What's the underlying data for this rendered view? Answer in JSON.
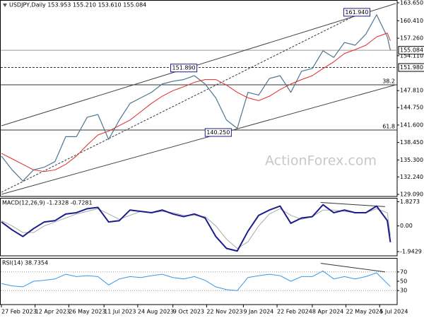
{
  "chart_data": [
    {
      "type": "line",
      "title": "USDJPY,Daily  153.953 155.210 153.610 155.084",
      "watermark": "ActionForex.com",
      "x": [
        "2023-02-27",
        "2023-03-13",
        "2023-03-27",
        "2023-04-10",
        "2023-04-24",
        "2023-05-08",
        "2023-05-22",
        "2023-06-05",
        "2023-06-19",
        "2023-07-03",
        "2023-07-17",
        "2023-07-31",
        "2023-08-14",
        "2023-08-28",
        "2023-09-11",
        "2023-09-25",
        "2023-10-09",
        "2023-10-23",
        "2023-11-06",
        "2023-11-20",
        "2023-12-04",
        "2023-12-18",
        "2024-01-01",
        "2024-01-15",
        "2024-01-29",
        "2024-02-12",
        "2024-02-26",
        "2024-03-11",
        "2024-03-25",
        "2024-04-08",
        "2024-04-22",
        "2024-05-06",
        "2024-05-20",
        "2024-06-03",
        "2024-06-17",
        "2024-07-01",
        "2024-07-15",
        "2024-07-19"
      ],
      "xlim": [
        "2023-02-27",
        "2024-07-26"
      ],
      "ylim": [
        128.71,
        164.16
      ],
      "yticks": [
        {
          "value": 163.65,
          "label": "163.650"
        },
        {
          "value": 160.41,
          "label": "160.410"
        },
        {
          "value": 157.26,
          "label": "157.260"
        },
        {
          "value": 154.11,
          "label": "154.110"
        },
        {
          "value": 147.81,
          "label": "147.810"
        },
        {
          "value": 144.75,
          "label": "144.750"
        },
        {
          "value": 141.6,
          "label": "141.600"
        },
        {
          "value": 138.45,
          "label": "138.450"
        },
        {
          "value": 135.3,
          "label": "135.300"
        },
        {
          "value": 132.24,
          "label": "132.240"
        },
        {
          "value": 129.09,
          "label": "129.090"
        }
      ],
      "series": [
        {
          "color": "#4d7590",
          "width": 1.2,
          "values": [
            136.0,
            133.5,
            131.5,
            133.5,
            134.0,
            135.0,
            139.5,
            139.5,
            143.0,
            143.5,
            139.0,
            142.5,
            145.5,
            146.5,
            147.5,
            149.0,
            149.5,
            149.8,
            150.5,
            149.0,
            146.5,
            142.5,
            141.0,
            147.5,
            147.0,
            150.0,
            150.5,
            147.5,
            151.3,
            151.8,
            155.0,
            153.8,
            156.5,
            156.0,
            158.0,
            161.5,
            157.5,
            155.084
          ]
        },
        {
          "color": "#e02a2a",
          "width": 1,
          "values": [
            136.5,
            135.5,
            134.5,
            133.5,
            133.2,
            133.5,
            134.5,
            136.0,
            138.0,
            139.8,
            140.5,
            141.5,
            142.5,
            144.0,
            145.5,
            146.8,
            147.8,
            148.5,
            149.3,
            149.8,
            149.8,
            148.8,
            147.5,
            146.5,
            146.0,
            146.8,
            148.0,
            149.0,
            149.8,
            150.5,
            151.8,
            153.0,
            154.5,
            155.2,
            156.0,
            157.5,
            158.2,
            156.8
          ]
        }
      ],
      "levels": [
        {
          "value": 155.084,
          "label": "155.084",
          "label_position": "axis",
          "style": "solid",
          "color": "#999999"
        },
        {
          "value": 151.98,
          "label": "151.980",
          "label_position": "axis",
          "style": "dashed",
          "color": "#333333"
        },
        {
          "value": 148.86,
          "label": "38.2",
          "label_position": "inside",
          "style": "solid",
          "color": "#333333"
        },
        {
          "value": 140.7,
          "label": "61.8",
          "label_position": "inside",
          "style": "solid",
          "color": "#333333"
        }
      ],
      "trendlines": [
        {
          "x": [
            "2023-02-27",
            "2024-07-26"
          ],
          "values": [
            141.46,
            163.52
          ],
          "style": "solid",
          "color": "#444444"
        },
        {
          "x": [
            "2023-02-27",
            "2024-07-26"
          ],
          "values": [
            129.09,
            148.86
          ],
          "style": "solid",
          "color": "#444444"
        },
        {
          "x": [
            "2023-02-27",
            "2024-06-14"
          ],
          "values": [
            129.47,
            162.12
          ],
          "style": "dashed",
          "color": "#333333"
        }
      ],
      "annotations": [
        {
          "x": "2024-06-26",
          "value": 161.94,
          "label": "161.940"
        },
        {
          "x": "2023-11-13",
          "value": 151.89,
          "label": "151.890"
        },
        {
          "x": "2023-12-28",
          "value": 140.25,
          "label": "140.250"
        }
      ]
    },
    {
      "type": "line",
      "title": "MACD(12,26,9) -1.2328 -0.7281",
      "x": [
        "2023-02-27",
        "2023-03-13",
        "2023-03-27",
        "2023-04-10",
        "2023-04-24",
        "2023-05-08",
        "2023-05-22",
        "2023-06-05",
        "2023-06-19",
        "2023-07-03",
        "2023-07-17",
        "2023-07-31",
        "2023-08-14",
        "2023-08-28",
        "2023-09-11",
        "2023-09-25",
        "2023-10-09",
        "2023-10-23",
        "2023-11-06",
        "2023-11-20",
        "2023-12-04",
        "2023-12-18",
        "2024-01-01",
        "2024-01-15",
        "2024-01-29",
        "2024-02-12",
        "2024-02-26",
        "2024-03-11",
        "2024-03-25",
        "2024-04-08",
        "2024-04-22",
        "2024-05-06",
        "2024-05-20",
        "2024-06-03",
        "2024-06-17",
        "2024-07-01",
        "2024-07-15",
        "2024-07-19"
      ],
      "xlim": [
        "2023-02-27",
        "2024-07-26"
      ],
      "ylim": [
        -2.26,
        2.12
      ],
      "yticks": [
        1.8273,
        {
          "value": 0,
          "label": "0.00"
        },
        -1.9429
      ],
      "series": [
        {
          "color": "#aaaaaa",
          "width": 1,
          "values": [
            0.4,
            0.0,
            -0.5,
            -0.5,
            0.0,
            0.3,
            0.6,
            0.9,
            1.1,
            1.3,
            0.9,
            0.5,
            0.8,
            1.1,
            1.0,
            1.1,
            1.0,
            0.8,
            0.8,
            0.7,
            0.0,
            -1.0,
            -1.7,
            -1.2,
            0.0,
            0.9,
            1.3,
            0.8,
            0.5,
            0.7,
            1.2,
            1.2,
            1.1,
            1.0,
            1.0,
            1.3,
            1.0,
            -0.7281
          ]
        },
        {
          "color": "#1c1c8e",
          "width": 2,
          "values": [
            0.3,
            -0.3,
            -0.8,
            -0.2,
            0.3,
            0.4,
            0.9,
            1.0,
            1.3,
            1.4,
            0.3,
            0.4,
            1.2,
            1.1,
            1.0,
            1.2,
            0.9,
            0.7,
            0.9,
            0.6,
            -0.8,
            -1.7,
            -1.9,
            -0.4,
            0.8,
            1.2,
            1.5,
            0.2,
            0.6,
            0.7,
            1.6,
            1.0,
            1.2,
            1.0,
            1.0,
            1.5,
            0.4,
            -1.2328
          ]
        }
      ],
      "trendlines": [
        {
          "x": [
            "2024-04-19",
            "2024-07-12"
          ],
          "values": [
            1.77,
            1.46
          ],
          "style": "solid",
          "color": "#333333"
        }
      ]
    },
    {
      "type": "line",
      "title": "RSI(14) 38.7354",
      "x": [
        "2023-02-27",
        "2023-03-13",
        "2023-03-27",
        "2023-04-10",
        "2023-04-24",
        "2023-05-08",
        "2023-05-22",
        "2023-06-05",
        "2023-06-19",
        "2023-07-03",
        "2023-07-17",
        "2023-07-31",
        "2023-08-14",
        "2023-08-28",
        "2023-09-11",
        "2023-09-25",
        "2023-10-09",
        "2023-10-23",
        "2023-11-06",
        "2023-11-20",
        "2023-12-04",
        "2023-12-18",
        "2024-01-01",
        "2024-01-15",
        "2024-01-29",
        "2024-02-12",
        "2024-02-26",
        "2024-03-11",
        "2024-03-25",
        "2024-04-08",
        "2024-04-22",
        "2024-05-06",
        "2024-05-20",
        "2024-06-03",
        "2024-06-17",
        "2024-07-01",
        "2024-07-15",
        "2024-07-19"
      ],
      "xlim": [
        "2023-02-27",
        "2024-07-26"
      ],
      "ylim": [
        0,
        100
      ],
      "yticks": [
        70,
        50,
        30
      ],
      "xticks": [
        {
          "value": "2023-02-27",
          "label": "27 Feb 2023"
        },
        {
          "value": "2023-04-12",
          "label": "12 Apr 2023"
        },
        {
          "value": "2023-05-26",
          "label": "26 May 2023"
        },
        {
          "value": "2023-07-11",
          "label": "11 Jul 2023"
        },
        {
          "value": "2023-08-24",
          "label": "24 Aug 2023"
        },
        {
          "value": "2023-10-09",
          "label": "9 Oct 2023"
        },
        {
          "value": "2023-11-22",
          "label": "22 Nov 2023"
        },
        {
          "value": "2024-01-09",
          "label": "9 Jan 2024"
        },
        {
          "value": "2024-02-22",
          "label": "22 Feb 2024"
        },
        {
          "value": "2024-04-08",
          "label": "8 Apr 2024"
        },
        {
          "value": "2024-05-22",
          "label": "22 May 2024"
        },
        {
          "value": "2024-07-05",
          "label": "5 Jul 2024"
        }
      ],
      "series": [
        {
          "color": "#3399ee",
          "width": 1,
          "values": [
            45,
            40,
            38,
            50,
            52,
            55,
            65,
            60,
            62,
            60,
            42,
            55,
            60,
            58,
            62,
            65,
            58,
            55,
            60,
            52,
            38,
            32,
            30,
            58,
            62,
            65,
            62,
            50,
            60,
            60,
            72,
            55,
            60,
            55,
            60,
            68,
            45,
            38.7354
          ]
        }
      ],
      "levels": [
        {
          "value": 70,
          "style": "dotted",
          "color": "#999999"
        },
        {
          "value": 30,
          "style": "dotted",
          "color": "#999999"
        }
      ],
      "trendlines": [
        {
          "x": [
            "2024-04-19",
            "2024-07-12"
          ],
          "values": [
            88.5,
            70
          ],
          "style": "solid",
          "color": "#333333"
        }
      ]
    }
  ]
}
